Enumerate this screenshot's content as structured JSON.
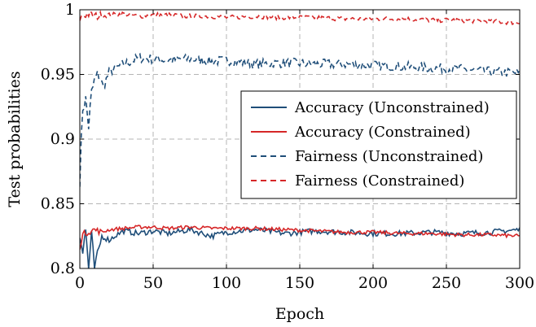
{
  "chart_data": {
    "type": "line",
    "xlabel": "Epoch",
    "ylabel": "Test probabilities",
    "xlim": [
      0,
      300
    ],
    "ylim": [
      0.8,
      1.0
    ],
    "x_ticks": [
      0,
      50,
      100,
      150,
      200,
      250,
      300
    ],
    "x_tick_labels": [
      "0",
      "50",
      "100",
      "150",
      "200",
      "250",
      "300"
    ],
    "y_ticks": [
      0.8,
      0.85,
      0.9,
      0.95,
      1.0
    ],
    "y_tick_labels": [
      "0.8",
      "0.85",
      "0.9",
      "0.95",
      "1"
    ],
    "grid": true,
    "legend_position": "center-right",
    "series": [
      {
        "name": "Accuracy (Unconstrained)",
        "color": "#1f4e79",
        "style": "solid",
        "x": [
          0,
          2,
          4,
          6,
          8,
          10,
          15,
          20,
          25,
          30,
          40,
          50,
          60,
          75,
          90,
          100,
          120,
          140,
          160,
          180,
          200,
          220,
          240,
          260,
          280,
          300
        ],
        "y": [
          0.827,
          0.812,
          0.83,
          0.8,
          0.826,
          0.8,
          0.825,
          0.822,
          0.826,
          0.829,
          0.827,
          0.829,
          0.827,
          0.83,
          0.825,
          0.828,
          0.83,
          0.827,
          0.829,
          0.828,
          0.827,
          0.827,
          0.828,
          0.827,
          0.828,
          0.83
        ]
      },
      {
        "name": "Accuracy (Constrained)",
        "color": "#d62728",
        "style": "solid",
        "x": [
          0,
          2,
          5,
          10,
          15,
          20,
          30,
          40,
          50,
          60,
          75,
          90,
          100,
          120,
          140,
          160,
          180,
          200,
          220,
          240,
          260,
          280,
          300
        ],
        "y": [
          0.817,
          0.826,
          0.828,
          0.83,
          0.828,
          0.83,
          0.831,
          0.832,
          0.832,
          0.831,
          0.832,
          0.831,
          0.831,
          0.831,
          0.83,
          0.829,
          0.828,
          0.828,
          0.827,
          0.827,
          0.826,
          0.826,
          0.825
        ]
      },
      {
        "name": "Fairness (Unconstrained)",
        "color": "#1f4e79",
        "style": "dashed",
        "x": [
          0,
          2,
          4,
          6,
          8,
          10,
          13,
          16,
          20,
          25,
          30,
          35,
          40,
          50,
          60,
          75,
          90,
          100,
          120,
          140,
          160,
          180,
          200,
          220,
          240,
          260,
          280,
          300
        ],
        "y": [
          0.87,
          0.925,
          0.93,
          0.91,
          0.935,
          0.945,
          0.95,
          0.94,
          0.952,
          0.955,
          0.958,
          0.96,
          0.963,
          0.962,
          0.961,
          0.962,
          0.96,
          0.961,
          0.958,
          0.959,
          0.958,
          0.958,
          0.957,
          0.956,
          0.955,
          0.954,
          0.952,
          0.951
        ]
      },
      {
        "name": "Fairness (Constrained)",
        "color": "#d62728",
        "style": "dashed",
        "x": [
          0,
          5,
          10,
          20,
          30,
          40,
          50,
          60,
          75,
          90,
          100,
          120,
          140,
          160,
          180,
          200,
          220,
          240,
          260,
          280,
          300
        ],
        "y": [
          0.993,
          0.997,
          0.995,
          0.996,
          0.997,
          0.995,
          0.996,
          0.996,
          0.995,
          0.995,
          0.994,
          0.995,
          0.994,
          0.994,
          0.993,
          0.993,
          0.993,
          0.992,
          0.992,
          0.991,
          0.99
        ]
      }
    ]
  }
}
